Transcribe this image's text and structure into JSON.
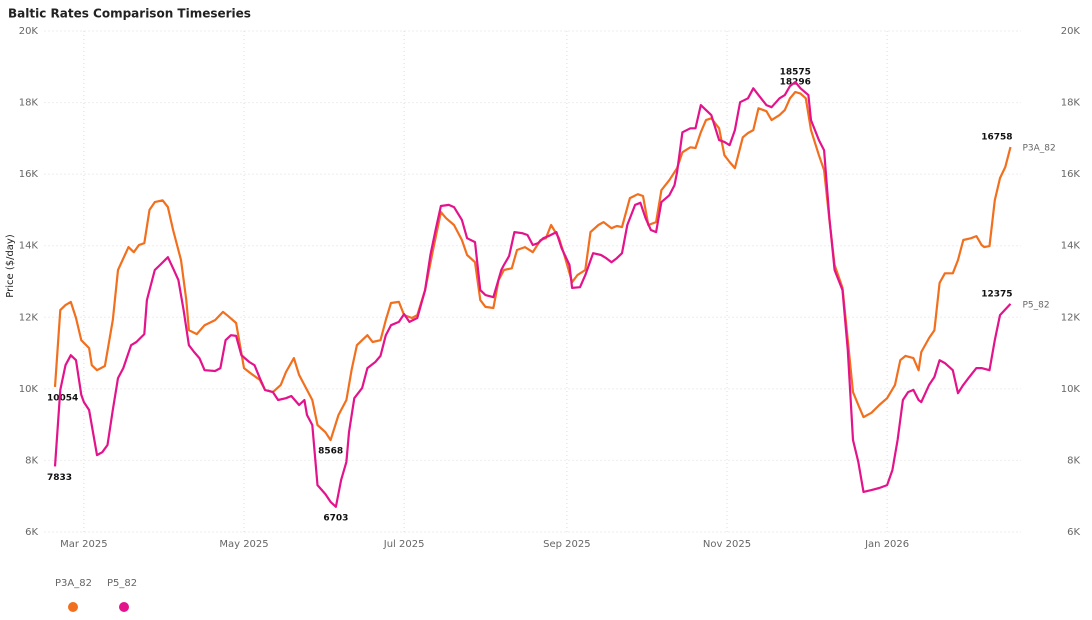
{
  "chart_data": {
    "type": "line",
    "title": "Baltic Rates Comparison Timeseries",
    "y_label": "Price ($/day)",
    "xlim": [
      -4,
      368
    ],
    "xticks": [
      {
        "value": 11,
        "label": "Mar 2025"
      },
      {
        "value": 72,
        "label": "May 2025"
      },
      {
        "value": 133,
        "label": "Jul 2025"
      },
      {
        "value": 195,
        "label": "Sep 2025"
      },
      {
        "value": 256,
        "label": "Nov 2025"
      },
      {
        "value": 317,
        "label": "Jan 2026"
      }
    ],
    "ylim": [
      6000,
      20000
    ],
    "yticks": [
      {
        "value": 6000,
        "label": "6K"
      },
      {
        "value": 8000,
        "label": "8K"
      },
      {
        "value": 10000,
        "label": "10K"
      },
      {
        "value": 12000,
        "label": "12K"
      },
      {
        "value": 14000,
        "label": "14K"
      },
      {
        "value": 16000,
        "label": "16K"
      },
      {
        "value": 18000,
        "label": "18K"
      },
      {
        "value": 20000,
        "label": "20K"
      }
    ],
    "grid": true,
    "mirror_y_axis": true,
    "legend": "bottom-left",
    "series": [
      {
        "name": "P3A_82",
        "color": "#f26f1e",
        "x": [
          0,
          2,
          4,
          6,
          8,
          10,
          13,
          14,
          16,
          19,
          22,
          24,
          28,
          30,
          32,
          34,
          36,
          38,
          41,
          43,
          45,
          48,
          50,
          51,
          54,
          57,
          61,
          64,
          66,
          69,
          72,
          75,
          78,
          80,
          83,
          86,
          88,
          91,
          93,
          96,
          98,
          100,
          103,
          105,
          108,
          111,
          113,
          115,
          117,
          119,
          121,
          124,
          126,
          128,
          131,
          133,
          136,
          138,
          141,
          144,
          147,
          149,
          152,
          155,
          157,
          160,
          162,
          164,
          167,
          169,
          171,
          174,
          176,
          179,
          182,
          185,
          187,
          189,
          192,
          194,
          197,
          199,
          202,
          204,
          207,
          209,
          212,
          214,
          216,
          219,
          222,
          224,
          226,
          229,
          231,
          234,
          237,
          239,
          242,
          244,
          246,
          248,
          250,
          253,
          255,
          257,
          259,
          262,
          264,
          266,
          268,
          271,
          273,
          276,
          278,
          280,
          282,
          284,
          286,
          288,
          291,
          293,
          295,
          297,
          300,
          302,
          304,
          306,
          308,
          311,
          314,
          317,
          320,
          322,
          324,
          327,
          329,
          330,
          333,
          335,
          337,
          339,
          342,
          344,
          346,
          349,
          351,
          353,
          354,
          356,
          358,
          360,
          362,
          364
        ],
        "values": [
          10054,
          12200,
          12340,
          12430,
          11980,
          11360,
          11140,
          10660,
          10520,
          10640,
          11920,
          13320,
          13960,
          13820,
          14020,
          14070,
          15000,
          15220,
          15270,
          15080,
          14440,
          13600,
          12480,
          11640,
          11530,
          11780,
          11920,
          12150,
          12030,
          11840,
          10580,
          10410,
          10250,
          9970,
          9910,
          10110,
          10470,
          10860,
          10390,
          9970,
          9690,
          8990,
          8790,
          8568,
          9270,
          9690,
          10530,
          11220,
          11360,
          11500,
          11310,
          11360,
          11920,
          12400,
          12430,
          12060,
          11980,
          12060,
          12760,
          13880,
          14940,
          14770,
          14580,
          14160,
          13740,
          13540,
          12480,
          12290,
          12260,
          13040,
          13320,
          13370,
          13880,
          13960,
          13820,
          14160,
          14210,
          14580,
          14210,
          13740,
          12980,
          13180,
          13320,
          14380,
          14580,
          14660,
          14490,
          14550,
          14520,
          15330,
          15440,
          15390,
          14580,
          14660,
          15550,
          15830,
          16170,
          16610,
          16750,
          16730,
          17170,
          17510,
          17560,
          17280,
          16530,
          16340,
          16170,
          17030,
          17150,
          17230,
          17840,
          17760,
          17510,
          17650,
          17790,
          18120,
          18296,
          18250,
          18120,
          17230,
          16530,
          16110,
          14720,
          13460,
          12820,
          11360,
          9910,
          9550,
          9210,
          9330,
          9550,
          9740,
          10110,
          10800,
          10920,
          10860,
          10520,
          11030,
          11420,
          11640,
          12960,
          13230,
          13230,
          13600,
          14160,
          14210,
          14270,
          14020,
          13960,
          13990,
          15270,
          15890,
          16200,
          16758
        ]
      },
      {
        "name": "P5_82",
        "color": "#e3138c",
        "x": [
          0,
          2,
          4,
          6,
          8,
          10,
          11,
          13,
          16,
          18,
          20,
          22,
          24,
          26,
          29,
          31,
          34,
          35,
          38,
          40,
          43,
          45,
          47,
          49,
          51,
          53,
          55,
          57,
          61,
          63,
          65,
          67,
          69,
          71,
          74,
          76,
          78,
          80,
          83,
          85,
          88,
          90,
          93,
          95,
          96,
          98,
          100,
          103,
          105,
          107,
          109,
          111,
          112,
          114,
          117,
          119,
          122,
          124,
          126,
          128,
          131,
          133,
          135,
          138,
          141,
          143,
          145,
          147,
          150,
          152,
          155,
          157,
          160,
          162,
          164,
          167,
          170,
          171,
          173,
          175,
          178,
          180,
          182,
          184,
          186,
          188,
          191,
          193,
          196,
          197,
          200,
          202,
          205,
          208,
          210,
          212,
          214,
          216,
          218,
          221,
          223,
          225,
          227,
          229,
          231,
          234,
          236,
          237,
          239,
          242,
          244,
          246,
          248,
          250,
          253,
          255,
          257,
          259,
          261,
          264,
          266,
          268,
          271,
          273,
          276,
          278,
          280,
          282,
          284,
          287,
          288,
          291,
          293,
          295,
          297,
          300,
          302,
          304,
          306,
          308,
          311,
          314,
          317,
          319,
          321,
          323,
          325,
          327,
          329,
          330,
          333,
          335,
          337,
          339,
          342,
          344,
          346,
          348,
          351,
          353,
          356,
          358,
          360,
          364
        ],
        "values": [
          7833,
          9970,
          10660,
          10940,
          10800,
          9830,
          9630,
          9410,
          8150,
          8230,
          8430,
          9410,
          10300,
          10580,
          11220,
          11310,
          11530,
          12480,
          13320,
          13460,
          13680,
          13370,
          13040,
          12200,
          11220,
          11030,
          10860,
          10520,
          10500,
          10580,
          11360,
          11500,
          11480,
          10940,
          10750,
          10660,
          10300,
          9970,
          9910,
          9690,
          9740,
          9800,
          9550,
          9690,
          9270,
          8990,
          7310,
          7060,
          6840,
          6703,
          7450,
          7960,
          8790,
          9740,
          10020,
          10580,
          10750,
          10920,
          11500,
          11780,
          11870,
          12090,
          11870,
          11980,
          12760,
          13740,
          14440,
          15110,
          15140,
          15080,
          14720,
          14210,
          14100,
          12760,
          12620,
          12560,
          13320,
          13460,
          13710,
          14380,
          14350,
          14300,
          14020,
          14070,
          14210,
          14270,
          14380,
          13930,
          13460,
          12820,
          12840,
          13180,
          13790,
          13740,
          13650,
          13540,
          13650,
          13790,
          14580,
          15140,
          15200,
          14770,
          14440,
          14380,
          15220,
          15410,
          15690,
          16060,
          17170,
          17280,
          17280,
          17930,
          17790,
          17650,
          16950,
          16900,
          16810,
          17230,
          18010,
          18120,
          18400,
          18210,
          17930,
          17870,
          18120,
          18210,
          18460,
          18575,
          18400,
          18210,
          17510,
          16950,
          16670,
          14770,
          13320,
          12760,
          11080,
          8570,
          7960,
          7120,
          7170,
          7230,
          7310,
          7730,
          8570,
          9690,
          9910,
          9970,
          9690,
          9630,
          10110,
          10330,
          10800,
          10720,
          10520,
          9880,
          10110,
          10300,
          10580,
          10580,
          10520,
          11360,
          12060,
          12375
        ]
      }
    ]
  }
}
